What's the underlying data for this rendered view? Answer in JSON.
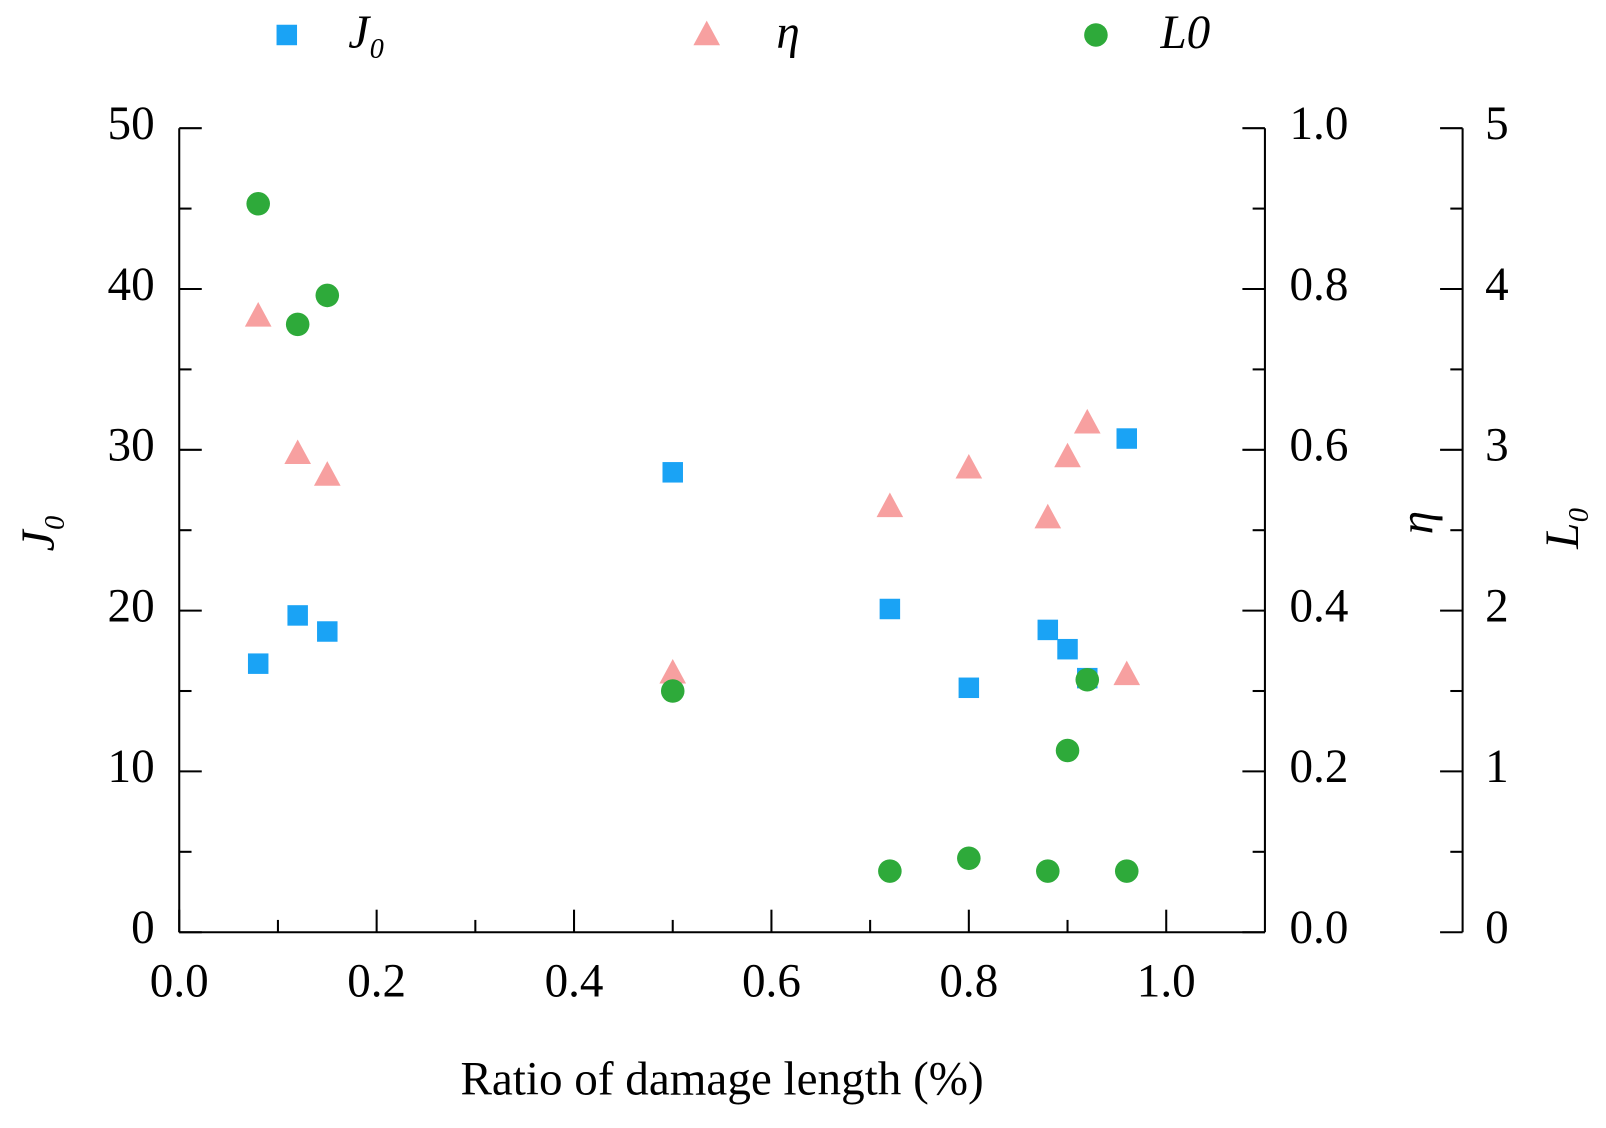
{
  "chart_data": {
    "type": "scatter",
    "xlabel": "Ratio of damage length (%)",
    "ylabel": "J₀",
    "y2label": "η",
    "y3label": "L₀",
    "x": [
      0.08,
      0.12,
      0.15,
      0.5,
      0.72,
      0.8,
      0.88,
      0.9,
      0.92,
      0.96
    ],
    "series": [
      {
        "name": "J₀",
        "color": "#1aa3f5",
        "marker": "square",
        "axis": "y",
        "values": [
          16.7,
          19.7,
          18.7,
          28.6,
          20.1,
          15.2,
          18.8,
          17.6,
          15.8,
          30.7
        ]
      },
      {
        "name": "η",
        "color": "#f7a0a0",
        "marker": "triangle",
        "axis": "y2",
        "values": [
          0.766,
          0.595,
          0.568,
          0.322,
          0.529,
          0.577,
          0.515,
          0.591,
          0.633,
          0.32
        ]
      },
      {
        "name": "L0",
        "color": "#2eaa3a",
        "marker": "circle",
        "axis": "y3",
        "values": [
          4.53,
          3.78,
          3.96,
          1.5,
          0.38,
          0.46,
          0.38,
          1.13,
          1.57,
          0.38
        ]
      }
    ],
    "xlim": [
      0,
      1.1
    ],
    "xticks": [
      {
        "value": 0,
        "label": "0.0"
      },
      0.2,
      0.4,
      0.6,
      0.8,
      {
        "value": 1,
        "label": "1.0"
      }
    ],
    "xminorticks": [
      0.1,
      0.3,
      0.5,
      0.7,
      0.9
    ],
    "ylim": [
      0,
      50
    ],
    "yticks": [
      0,
      10,
      20,
      30,
      40,
      50
    ],
    "yminorticks": [
      5,
      15,
      25,
      35,
      45
    ],
    "y2lim": [
      0,
      1
    ],
    "y2ticks": [
      {
        "value": 0,
        "label": "0.0"
      },
      0.2,
      0.4,
      0.6,
      0.8,
      {
        "value": 1,
        "label": "1.0"
      }
    ],
    "y2minorticks": [
      0.1,
      0.3,
      0.5,
      0.7,
      0.9
    ],
    "y3lim": [
      0,
      5
    ],
    "y3ticks": [
      0,
      1,
      2,
      3,
      4,
      5
    ],
    "y3minorticks": [
      0.5,
      1.5,
      2.5,
      3.5,
      4.5
    ]
  }
}
